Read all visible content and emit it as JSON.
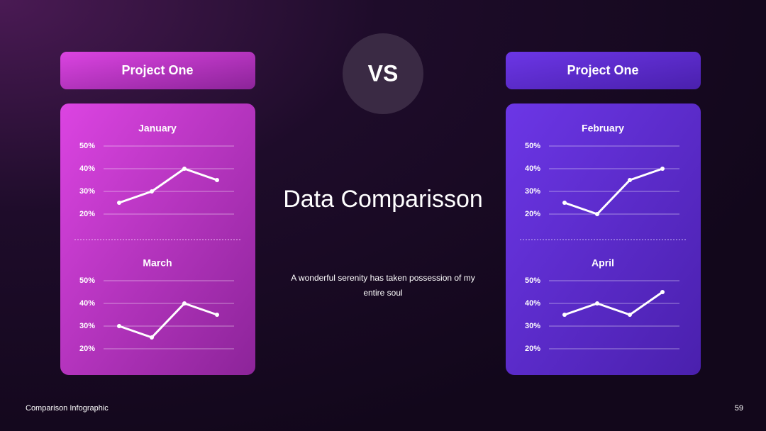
{
  "headers": [
    "Project One",
    "Project One"
  ],
  "vs": "VS",
  "title": "Data Comparisson",
  "subtitle": "A wonderful serenity has taken possession of my entire soul",
  "footer": {
    "left": "Comparison Infographic",
    "page": "59"
  },
  "chart_data": [
    {
      "type": "line",
      "title": "January",
      "categories": [
        null,
        null,
        null,
        null
      ],
      "values": [
        25,
        30,
        40,
        35
      ],
      "color": "#ffffff",
      "ylim": [
        20,
        50
      ],
      "yticks": [
        {
          "value": 20,
          "label": "20%"
        },
        {
          "value": 30,
          "label": "30%"
        },
        {
          "value": 40,
          "label": "40%"
        },
        {
          "value": 50,
          "label": "50%"
        }
      ],
      "grid": true
    },
    {
      "type": "line",
      "title": "February",
      "categories": [
        null,
        null,
        null,
        null
      ],
      "values": [
        25,
        20,
        35,
        40
      ],
      "color": "#ffffff",
      "ylim": [
        20,
        50
      ],
      "yticks": [
        {
          "value": 20,
          "label": "20%"
        },
        {
          "value": 30,
          "label": "30%"
        },
        {
          "value": 40,
          "label": "40%"
        },
        {
          "value": 50,
          "label": "50%"
        }
      ],
      "grid": true
    },
    {
      "type": "line",
      "title": "March",
      "categories": [
        null,
        null,
        null,
        null
      ],
      "values": [
        30,
        25,
        40,
        35
      ],
      "color": "#ffffff",
      "ylim": [
        20,
        50
      ],
      "yticks": [
        {
          "value": 20,
          "label": "20%"
        },
        {
          "value": 30,
          "label": "30%"
        },
        {
          "value": 40,
          "label": "40%"
        },
        {
          "value": 50,
          "label": "50%"
        }
      ],
      "grid": true
    },
    {
      "type": "line",
      "title": "April",
      "categories": [
        null,
        null,
        null,
        null
      ],
      "values": [
        35,
        40,
        35,
        45
      ],
      "color": "#ffffff",
      "ylim": [
        20,
        50
      ],
      "yticks": [
        {
          "value": 20,
          "label": "20%"
        },
        {
          "value": 30,
          "label": "30%"
        },
        {
          "value": 40,
          "label": "40%"
        },
        {
          "value": 50,
          "label": "50%"
        }
      ],
      "grid": true
    }
  ]
}
